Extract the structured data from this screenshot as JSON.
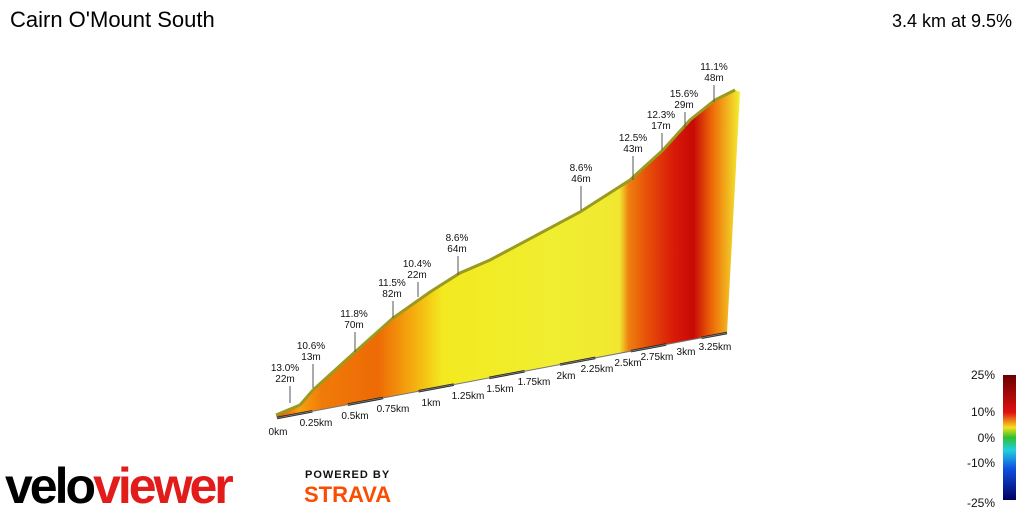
{
  "header": {
    "title": "Cairn O'Mount South",
    "summary": "3.4 km at 9.5%"
  },
  "distance_labels": [
    "0km",
    "0.25km",
    "0.5km",
    "0.75km",
    "1km",
    "1.25km",
    "1.5km",
    "1.75km",
    "2km",
    "2.25km",
    "2.5km",
    "2.75km",
    "3km",
    "3.25km"
  ],
  "annotations": [
    {
      "gradient": "13.0%",
      "length": "22m"
    },
    {
      "gradient": "10.6%",
      "length": "13m"
    },
    {
      "gradient": "11.8%",
      "length": "70m"
    },
    {
      "gradient": "11.5%",
      "length": "82m"
    },
    {
      "gradient": "10.4%",
      "length": "22m"
    },
    {
      "gradient": "8.6%",
      "length": "64m"
    },
    {
      "gradient": "8.6%",
      "length": "46m"
    },
    {
      "gradient": "12.5%",
      "length": "43m"
    },
    {
      "gradient": "12.3%",
      "length": "17m"
    },
    {
      "gradient": "15.6%",
      "length": "29m"
    },
    {
      "gradient": "11.1%",
      "length": "48m"
    }
  ],
  "legend": {
    "labels": [
      "25%",
      "10%",
      "0%",
      "-10%",
      "-25%"
    ]
  },
  "branding": {
    "logo_velo": "velo",
    "logo_viewer": "viewer",
    "powered_by": "POWERED BY",
    "partner": "STRAVA"
  }
}
